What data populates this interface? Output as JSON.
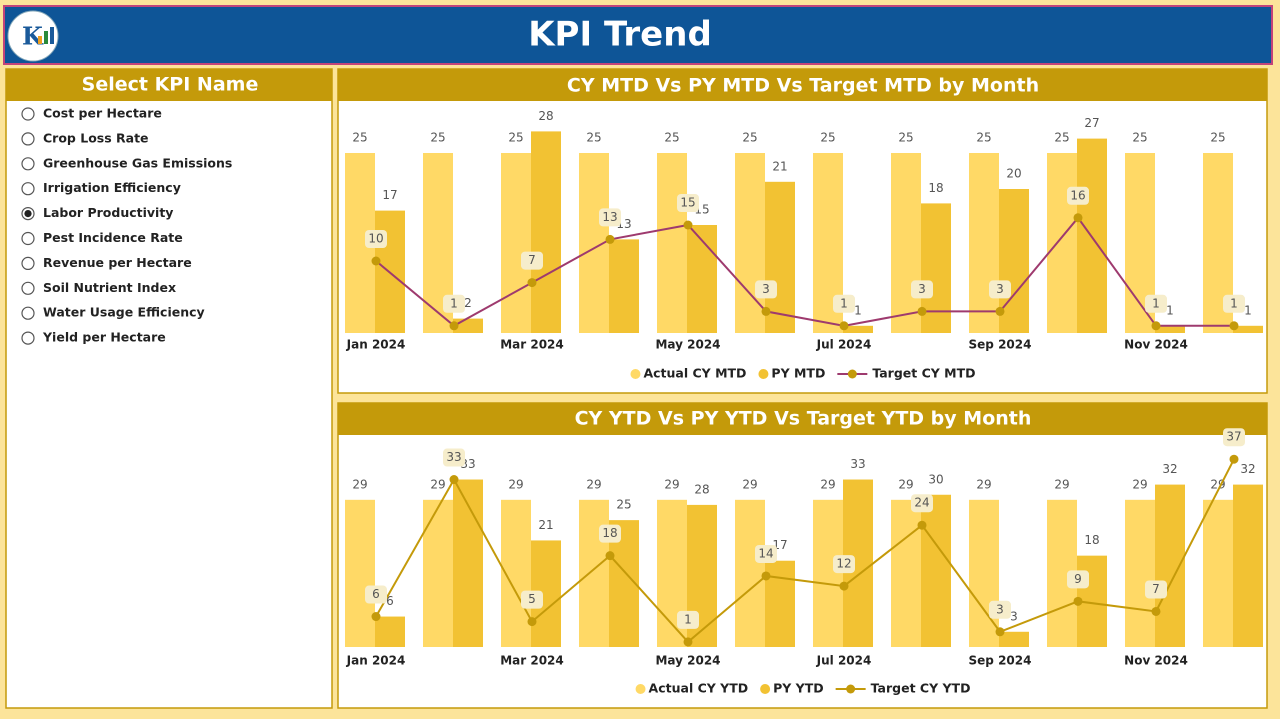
{
  "header": {
    "title": "KPI Trend"
  },
  "slicer": {
    "title": "Select KPI Name",
    "options": [
      "Cost per Hectare",
      "Crop Loss Rate",
      "Greenhouse Gas Emissions",
      "Irrigation Efficiency",
      "Labor Productivity",
      "Pest Incidence Rate",
      "Revenue per Hectare",
      "Soil Nutrient Index",
      "Water Usage Efficiency",
      "Yield per Hectare"
    ],
    "selected": "Labor Productivity"
  },
  "chart_data": [
    {
      "type": "combo",
      "title": "CY MTD Vs PY MTD Vs Target MTD by Month",
      "categories": [
        "Jan 2024",
        null,
        "Mar 2024",
        null,
        "May 2024",
        null,
        "Jul 2024",
        null,
        "Sep 2024",
        null,
        "Nov 2024",
        null
      ],
      "ylim": [
        0,
        30
      ],
      "series": [
        {
          "name": "Actual CY MTD",
          "type": "bar",
          "color": "#FFD966",
          "values": [
            25,
            25,
            25,
            25,
            25,
            25,
            25,
            25,
            25,
            25,
            25,
            25
          ]
        },
        {
          "name": "PY MTD",
          "type": "bar",
          "color": "#F2C233",
          "values": [
            17,
            2,
            28,
            13,
            15,
            21,
            1,
            18,
            20,
            27,
            1,
            1
          ]
        },
        {
          "name": "Target CY MTD",
          "type": "line",
          "color": "#9E3A6E",
          "marker_color": "#C49A0A",
          "values": [
            10,
            1,
            7,
            13,
            15,
            3,
            1,
            3,
            3,
            16,
            1,
            1
          ]
        }
      ]
    },
    {
      "type": "combo",
      "title": "CY YTD Vs PY YTD Vs Target YTD by Month",
      "categories": [
        "Jan 2024",
        null,
        "Mar 2024",
        null,
        "May 2024",
        null,
        "Jul 2024",
        null,
        "Sep 2024",
        null,
        "Nov 2024",
        null
      ],
      "ylim": [
        0,
        40
      ],
      "series": [
        {
          "name": "Actual CY YTD",
          "type": "bar",
          "color": "#FFD966",
          "values": [
            29,
            29,
            29,
            29,
            29,
            29,
            29,
            29,
            29,
            29,
            29,
            29
          ]
        },
        {
          "name": "PY YTD",
          "type": "bar",
          "color": "#F2C233",
          "values": [
            6,
            33,
            21,
            25,
            28,
            17,
            33,
            30,
            3,
            18,
            32,
            32
          ]
        },
        {
          "name": "Target CY YTD",
          "type": "line",
          "color": "#C49A0A",
          "marker_color": "#C49A0A",
          "values": [
            6,
            33,
            5,
            18,
            1,
            14,
            12,
            24,
            3,
            9,
            7,
            37
          ]
        }
      ]
    }
  ]
}
